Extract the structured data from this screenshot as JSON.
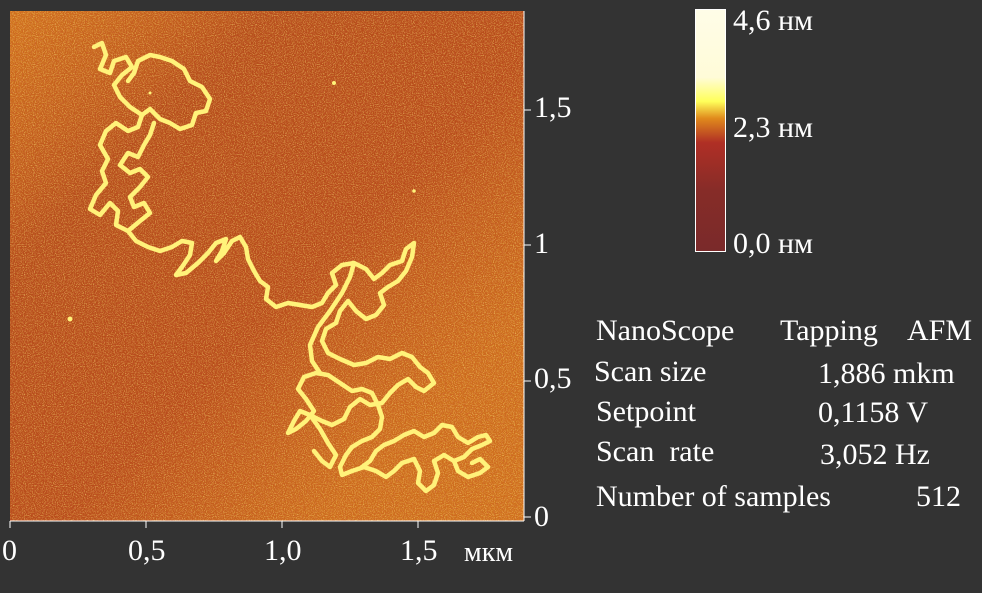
{
  "colorbar": {
    "labels": [
      "4,6 нм",
      "2,3 нм",
      "0,0 нм"
    ],
    "colors": [
      "#7a2a2a",
      "#9e2e24",
      "#c4322b",
      "#e09a1c",
      "#ffff5a",
      "#fffde8"
    ]
  },
  "x_axis": {
    "ticks": [
      "0",
      "0,5",
      "1,0",
      "1,5"
    ],
    "unit": "мкм"
  },
  "y_axis": {
    "ticks": [
      "1,5",
      "1",
      "0,5",
      "0"
    ]
  },
  "info": {
    "header": [
      "NanoScope",
      "Tapping",
      "AFM"
    ],
    "rows": [
      {
        "label": "Scan size",
        "value": "1,886 mkm"
      },
      {
        "label": "Setpoint",
        "value": "0,1158 V"
      },
      {
        "label": "Scan  rate",
        "value": "3,052 Hz"
      },
      {
        "label": "Number of samples",
        "value": "512"
      }
    ]
  },
  "colors": {
    "background": "#333333",
    "scan_base": "#d0701c",
    "strand": "#fff27a"
  }
}
